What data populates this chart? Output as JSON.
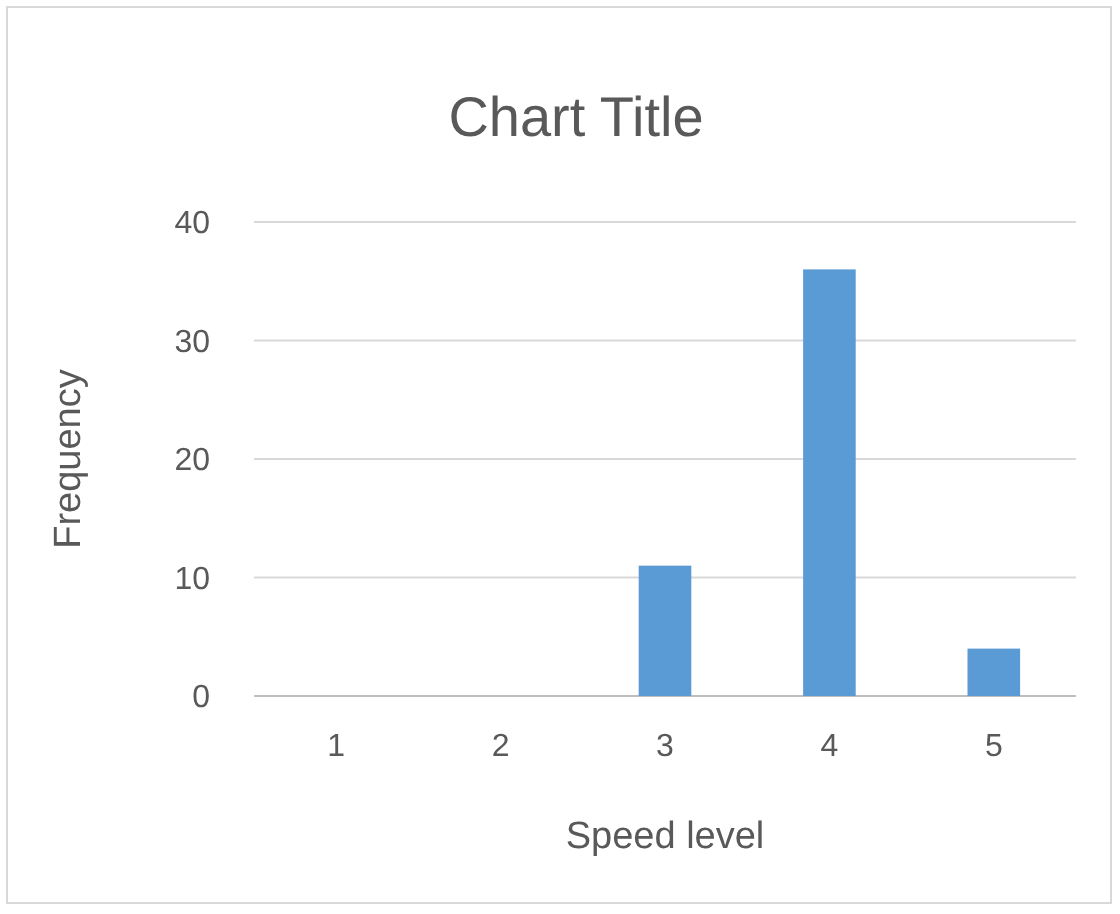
{
  "chart_data": {
    "type": "bar",
    "title": "Chart Title",
    "xlabel": "Speed level",
    "ylabel": "Frequency",
    "categories": [
      "1",
      "2",
      "3",
      "4",
      "5"
    ],
    "values": [
      0,
      0,
      11,
      36,
      4
    ],
    "color": "#5b9bd5",
    "ylim": [
      0,
      40
    ],
    "yticks": [
      0,
      10,
      20,
      30,
      40
    ],
    "grid": "y"
  }
}
